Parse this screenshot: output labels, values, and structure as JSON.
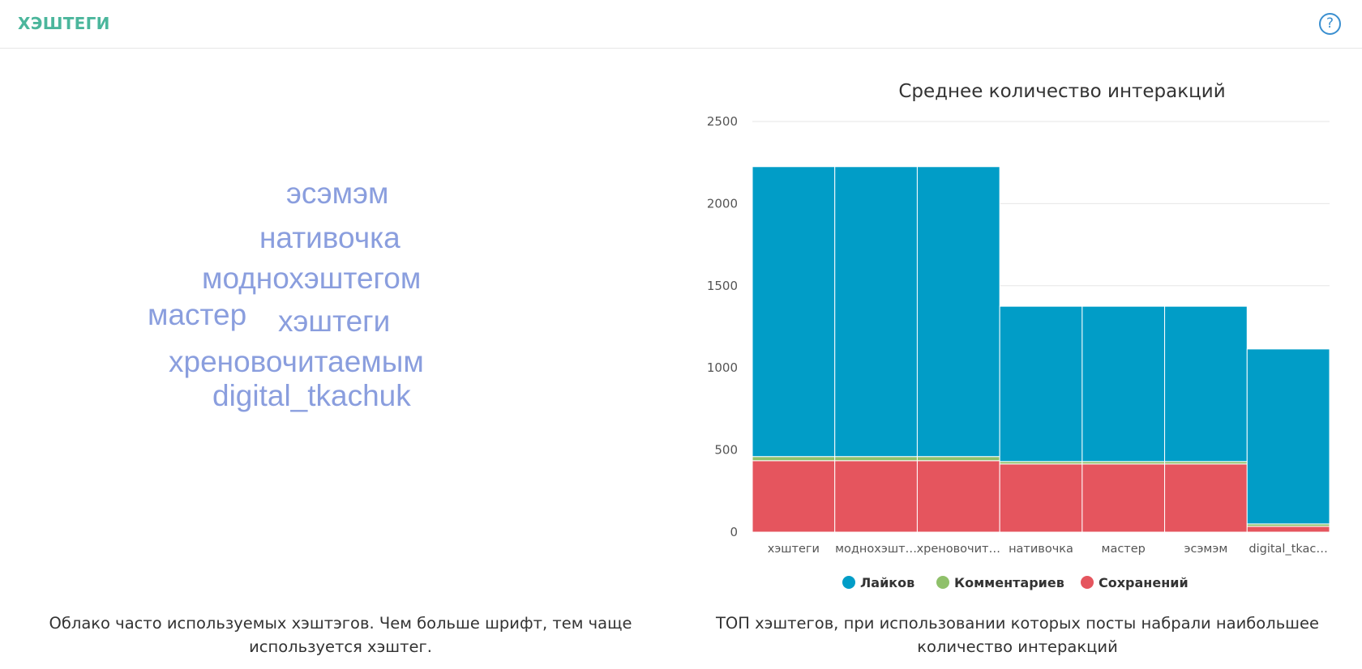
{
  "header": {
    "title": "ХЭШТЕГИ",
    "help_icon_glyph": "?"
  },
  "cloud": {
    "words": [
      "эсэмэм",
      "нативочка",
      "моднохэштегом",
      "мастер",
      "хэштеги",
      "хреновочитаемым",
      "digital_tkachuk"
    ],
    "color": "#8a9ede"
  },
  "captions": {
    "left": "Облако часто используемых хэштэгов. Чем больше шрифт, тем чаще используется хэштег.",
    "right": "ТОП хэштегов, при использовании которых посты набрали наибольшее количество интеракций"
  },
  "chart_data": {
    "type": "bar",
    "stacked": true,
    "title": "Среднее количество интеракций",
    "categories": [
      "хэштеги",
      "моднохэшт…",
      "хреновочит…",
      "нативочка",
      "мастер",
      "эсэмэм",
      "digital_tkac…"
    ],
    "series": [
      {
        "name": "Сохранений",
        "color": "#e5555e",
        "values": [
          435,
          435,
          435,
          415,
          415,
          415,
          35
        ]
      },
      {
        "name": "Комментариев",
        "color": "#8fc06a",
        "values": [
          25,
          25,
          25,
          15,
          15,
          15,
          15
        ]
      },
      {
        "name": "Лайков",
        "color": "#019dc7",
        "values": [
          1765,
          1765,
          1765,
          945,
          945,
          945,
          1065
        ]
      }
    ],
    "legend": [
      "Лайков",
      "Комментариев",
      "Сохранений"
    ],
    "legend_colors": [
      "#019dc7",
      "#8fc06a",
      "#e5555e"
    ],
    "yticks": [
      0,
      500,
      1000,
      1500,
      2000,
      2500
    ],
    "ylim": [
      0,
      2500
    ],
    "grid": true,
    "legend_position": "bottom"
  }
}
